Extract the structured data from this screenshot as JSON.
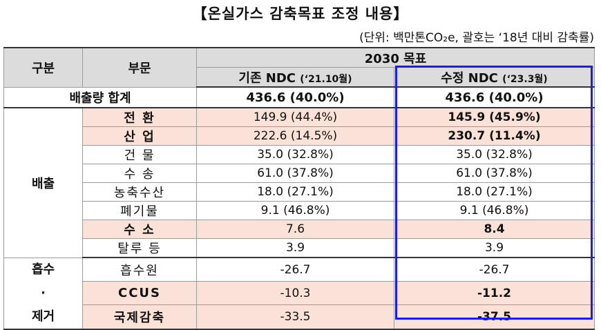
{
  "title": "【온실가스 감축목표 조정 내용】",
  "unit_note": "(단위: 백만톤CO₂e, 괄호는 ‘18년 대비 감축률)",
  "header": {
    "col_category": "구분",
    "col_sector": "부문",
    "target_group": "2030 목표",
    "existing_main": "기존 NDC",
    "existing_date": "(‘21.10월)",
    "revised_main": "수정 NDC",
    "revised_date": "(‘23.3월)"
  },
  "total": {
    "label": "배출량 합계",
    "existing": "436.6 (40.0%)",
    "revised": "436.6 (40.0%)"
  },
  "emission_group": "배출",
  "emissions": [
    {
      "sector": "전 환",
      "existing": "149.9 (44.4%)",
      "revised": "145.9 (45.9%)",
      "changed": true
    },
    {
      "sector": "산 업",
      "existing": "222.6 (14.5%)",
      "revised": "230.7 (11.4%)",
      "changed": true
    },
    {
      "sector": "건 물",
      "existing": "35.0 (32.8%)",
      "revised": "35.0 (32.8%)",
      "changed": false
    },
    {
      "sector": "수 송",
      "existing": "61.0 (37.8%)",
      "revised": "61.0 (37.8%)",
      "changed": false
    },
    {
      "sector": "농축수산",
      "existing": "18.0 (27.1%)",
      "revised": "18.0 (27.1%)",
      "changed": false
    },
    {
      "sector": "폐기물",
      "existing": "9.1 (46.8%)",
      "revised": "9.1 (46.8%)",
      "changed": false
    },
    {
      "sector": "수 소",
      "existing": "7.6",
      "revised": "8.4",
      "changed": true
    },
    {
      "sector": "탈루 등",
      "existing": "3.9",
      "revised": "3.9",
      "changed": false
    }
  ],
  "removal_group": {
    "line1": "흡수",
    "line2": "·",
    "line3": "제거"
  },
  "removals": [
    {
      "sector": "흡수원",
      "existing": "-26.7",
      "revised": "-26.7",
      "changed": false
    },
    {
      "sector": "CCUS",
      "existing": "-10.3",
      "revised": "-11.2",
      "changed": true
    },
    {
      "sector": "국제감축",
      "existing": "-33.5",
      "revised": "-37.5",
      "changed": true
    }
  ],
  "colors": {
    "highlight_row": "#fbe2d8",
    "header_bg": "#dcdcdc",
    "revised_box": "#1a1aff"
  }
}
